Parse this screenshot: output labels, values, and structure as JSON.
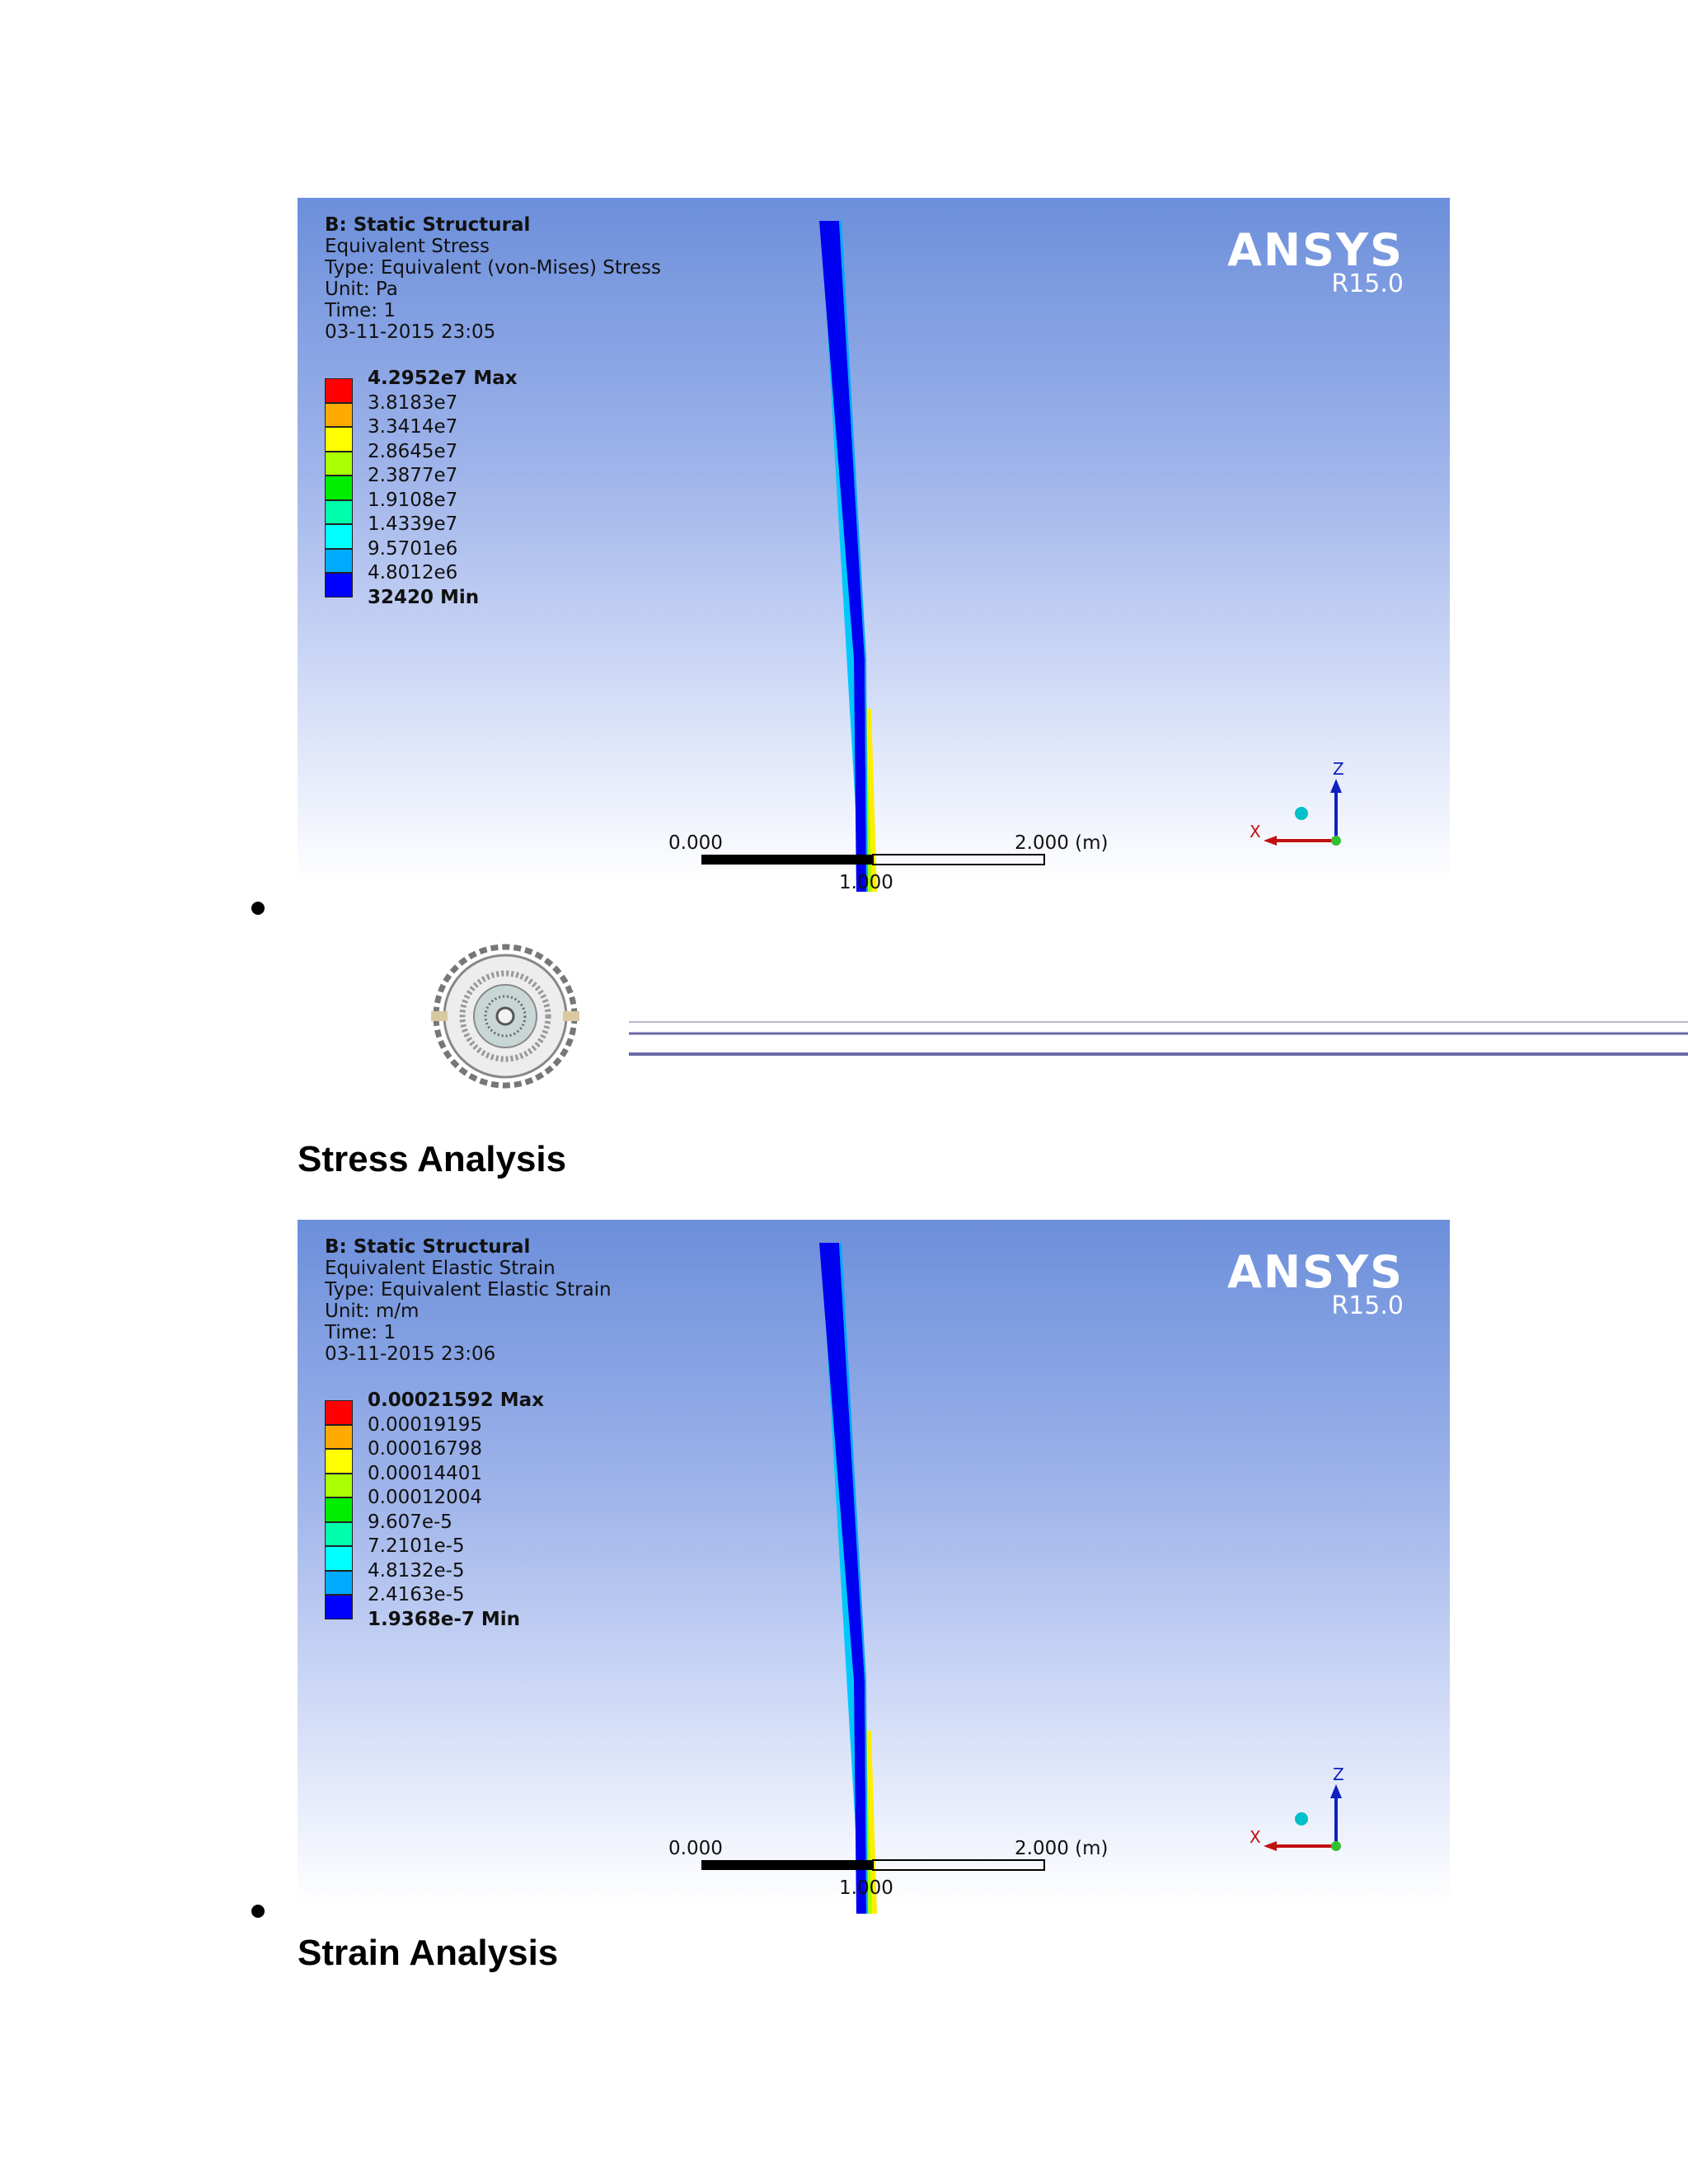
{
  "panels": [
    {
      "info": {
        "title": "B: Static Structural",
        "result": "Equivalent Stress",
        "type": "Type: Equivalent (von-Mises) Stress",
        "unit": "Unit: Pa",
        "time": "Time: 1",
        "date": "03-11-2015 23:05"
      },
      "legend": [
        "4.2952e7 Max",
        "3.8183e7",
        "3.3414e7",
        "2.8645e7",
        "2.3877e7",
        "1.9108e7",
        "1.4339e7",
        "9.5701e6",
        "4.8012e6",
        "32420 Min"
      ],
      "brand": {
        "name": "ANSYS",
        "version": "R15.0"
      },
      "scale": {
        "left": "0.000",
        "mid": "1.000",
        "right": "2.000 (m)"
      },
      "triad": {
        "z": "Z",
        "x": "X"
      }
    },
    {
      "info": {
        "title": "B: Static Structural",
        "result": "Equivalent Elastic Strain",
        "type": "Type: Equivalent Elastic Strain",
        "unit": "Unit: m/m",
        "time": "Time: 1",
        "date": "03-11-2015 23:06"
      },
      "legend": [
        "0.00021592 Max",
        "0.00019195",
        "0.00016798",
        "0.00014401",
        "0.00012004",
        "9.607e-5",
        "7.2101e-5",
        "4.8132e-5",
        "2.4163e-5",
        "1.9368e-7 Min"
      ],
      "brand": {
        "name": "ANSYS",
        "version": "R15.0"
      },
      "scale": {
        "left": "0.000",
        "mid": "1.000",
        "right": "2.000 (m)"
      },
      "triad": {
        "z": "Z",
        "x": "X"
      }
    }
  ],
  "legend_colors": [
    "#ff0000",
    "#ffaa00",
    "#ffff00",
    "#aaff00",
    "#00ee00",
    "#00ffaa",
    "#00ffff",
    "#00aaff",
    "#0000ff"
  ],
  "captions": {
    "stress": "Stress Analysis",
    "strain": "Strain Analysis"
  }
}
